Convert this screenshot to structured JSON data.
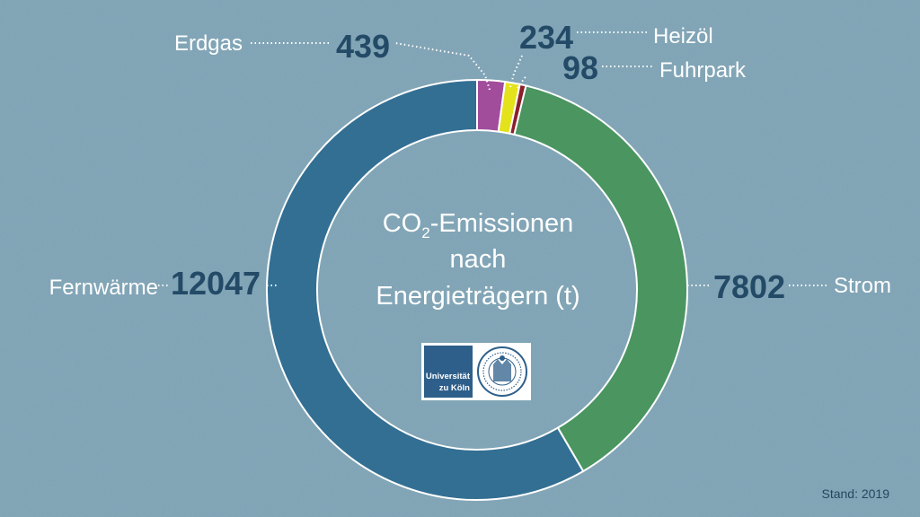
{
  "chart_data": {
    "type": "pie",
    "variant": "donut",
    "title_parts": {
      "pre": "CO",
      "sub": "2",
      "post": "-Emissionen"
    },
    "title_lines": [
      "nach",
      "Energieträgern (t)"
    ],
    "series": [
      {
        "name": "Erdgas",
        "value": 439,
        "color": "#a24c9c"
      },
      {
        "name": "Heizöl",
        "value": 234,
        "color": "#e4e21b"
      },
      {
        "name": "Fuhrpark",
        "value": 98,
        "color": "#8a1f2c"
      },
      {
        "name": "Strom",
        "value": 7802,
        "color": "#4a9560"
      },
      {
        "name": "Fernwärme",
        "value": 12047,
        "color": "#336f93"
      }
    ]
  },
  "logo": {
    "line1": "Universität",
    "line2": "zu Köln"
  },
  "footnote": "Stand: 2019"
}
